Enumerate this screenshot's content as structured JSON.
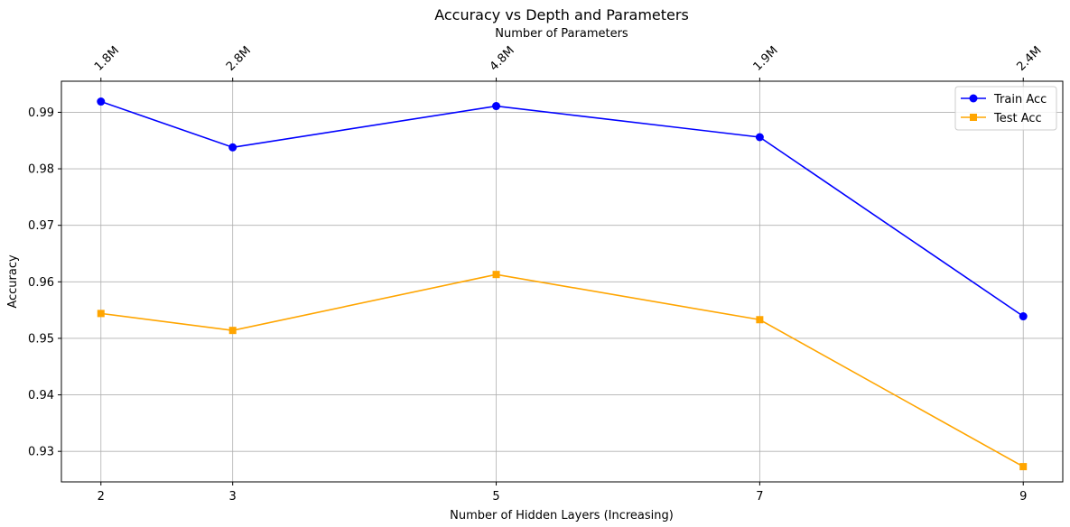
{
  "chart_data": {
    "type": "line",
    "title": "Accuracy vs Depth and Parameters",
    "xlabel": "Number of Hidden Layers (Increasing)",
    "ylabel": "Accuracy",
    "top_xlabel": "Number of Parameters",
    "x": [
      2,
      3,
      5,
      7,
      9
    ],
    "x_ticks": [
      "2",
      "3",
      "5",
      "7",
      "9"
    ],
    "top_x_ticks": [
      "1.8M",
      "2.8M",
      "4.8M",
      "1.9M",
      "2.4M"
    ],
    "xlim": [
      1.7,
      9.3
    ],
    "ylim": [
      0.9246,
      0.9955
    ],
    "y_ticks": [
      0.93,
      0.94,
      0.95,
      0.96,
      0.97,
      0.98,
      0.99
    ],
    "y_tick_labels": [
      "0.93",
      "0.94",
      "0.95",
      "0.96",
      "0.97",
      "0.98",
      "0.99"
    ],
    "grid": true,
    "legend_position": "top-right",
    "series": [
      {
        "name": "Train Acc",
        "values": [
          0.9919,
          0.9838,
          0.9911,
          0.9856,
          0.9539
        ],
        "color": "#0000ff",
        "marker": "circle"
      },
      {
        "name": "Test Acc",
        "values": [
          0.9544,
          0.9514,
          0.9613,
          0.9533,
          0.9273
        ],
        "color": "#ffa500",
        "marker": "square"
      }
    ]
  }
}
